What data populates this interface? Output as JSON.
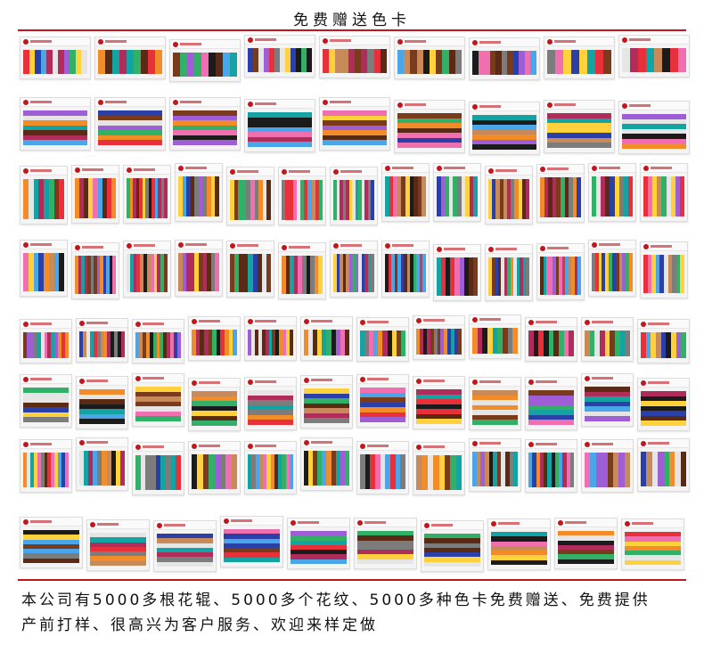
{
  "header": {
    "title": "免费赠送色卡"
  },
  "footer": {
    "caption_line1": "本公司有5000多根花辊、5000多个花纹、5000多种色卡免费赠送、免费提供",
    "caption_line2": "产前打样、很高兴为客户服务、欢迎来样定做"
  },
  "colors": {
    "accent": "#c0161c",
    "palette": [
      "#1b1b1b",
      "#e8303a",
      "#f06fb0",
      "#ffd23d",
      "#4aa6e8",
      "#2b3fa8",
      "#7a3b1d",
      "#c98a5a",
      "#9f5dd6",
      "#33b067",
      "#f28c28",
      "#e5e5e5",
      "#5a2a14",
      "#b02c5a",
      "#14a3a3",
      "#7c7c7c"
    ]
  }
}
